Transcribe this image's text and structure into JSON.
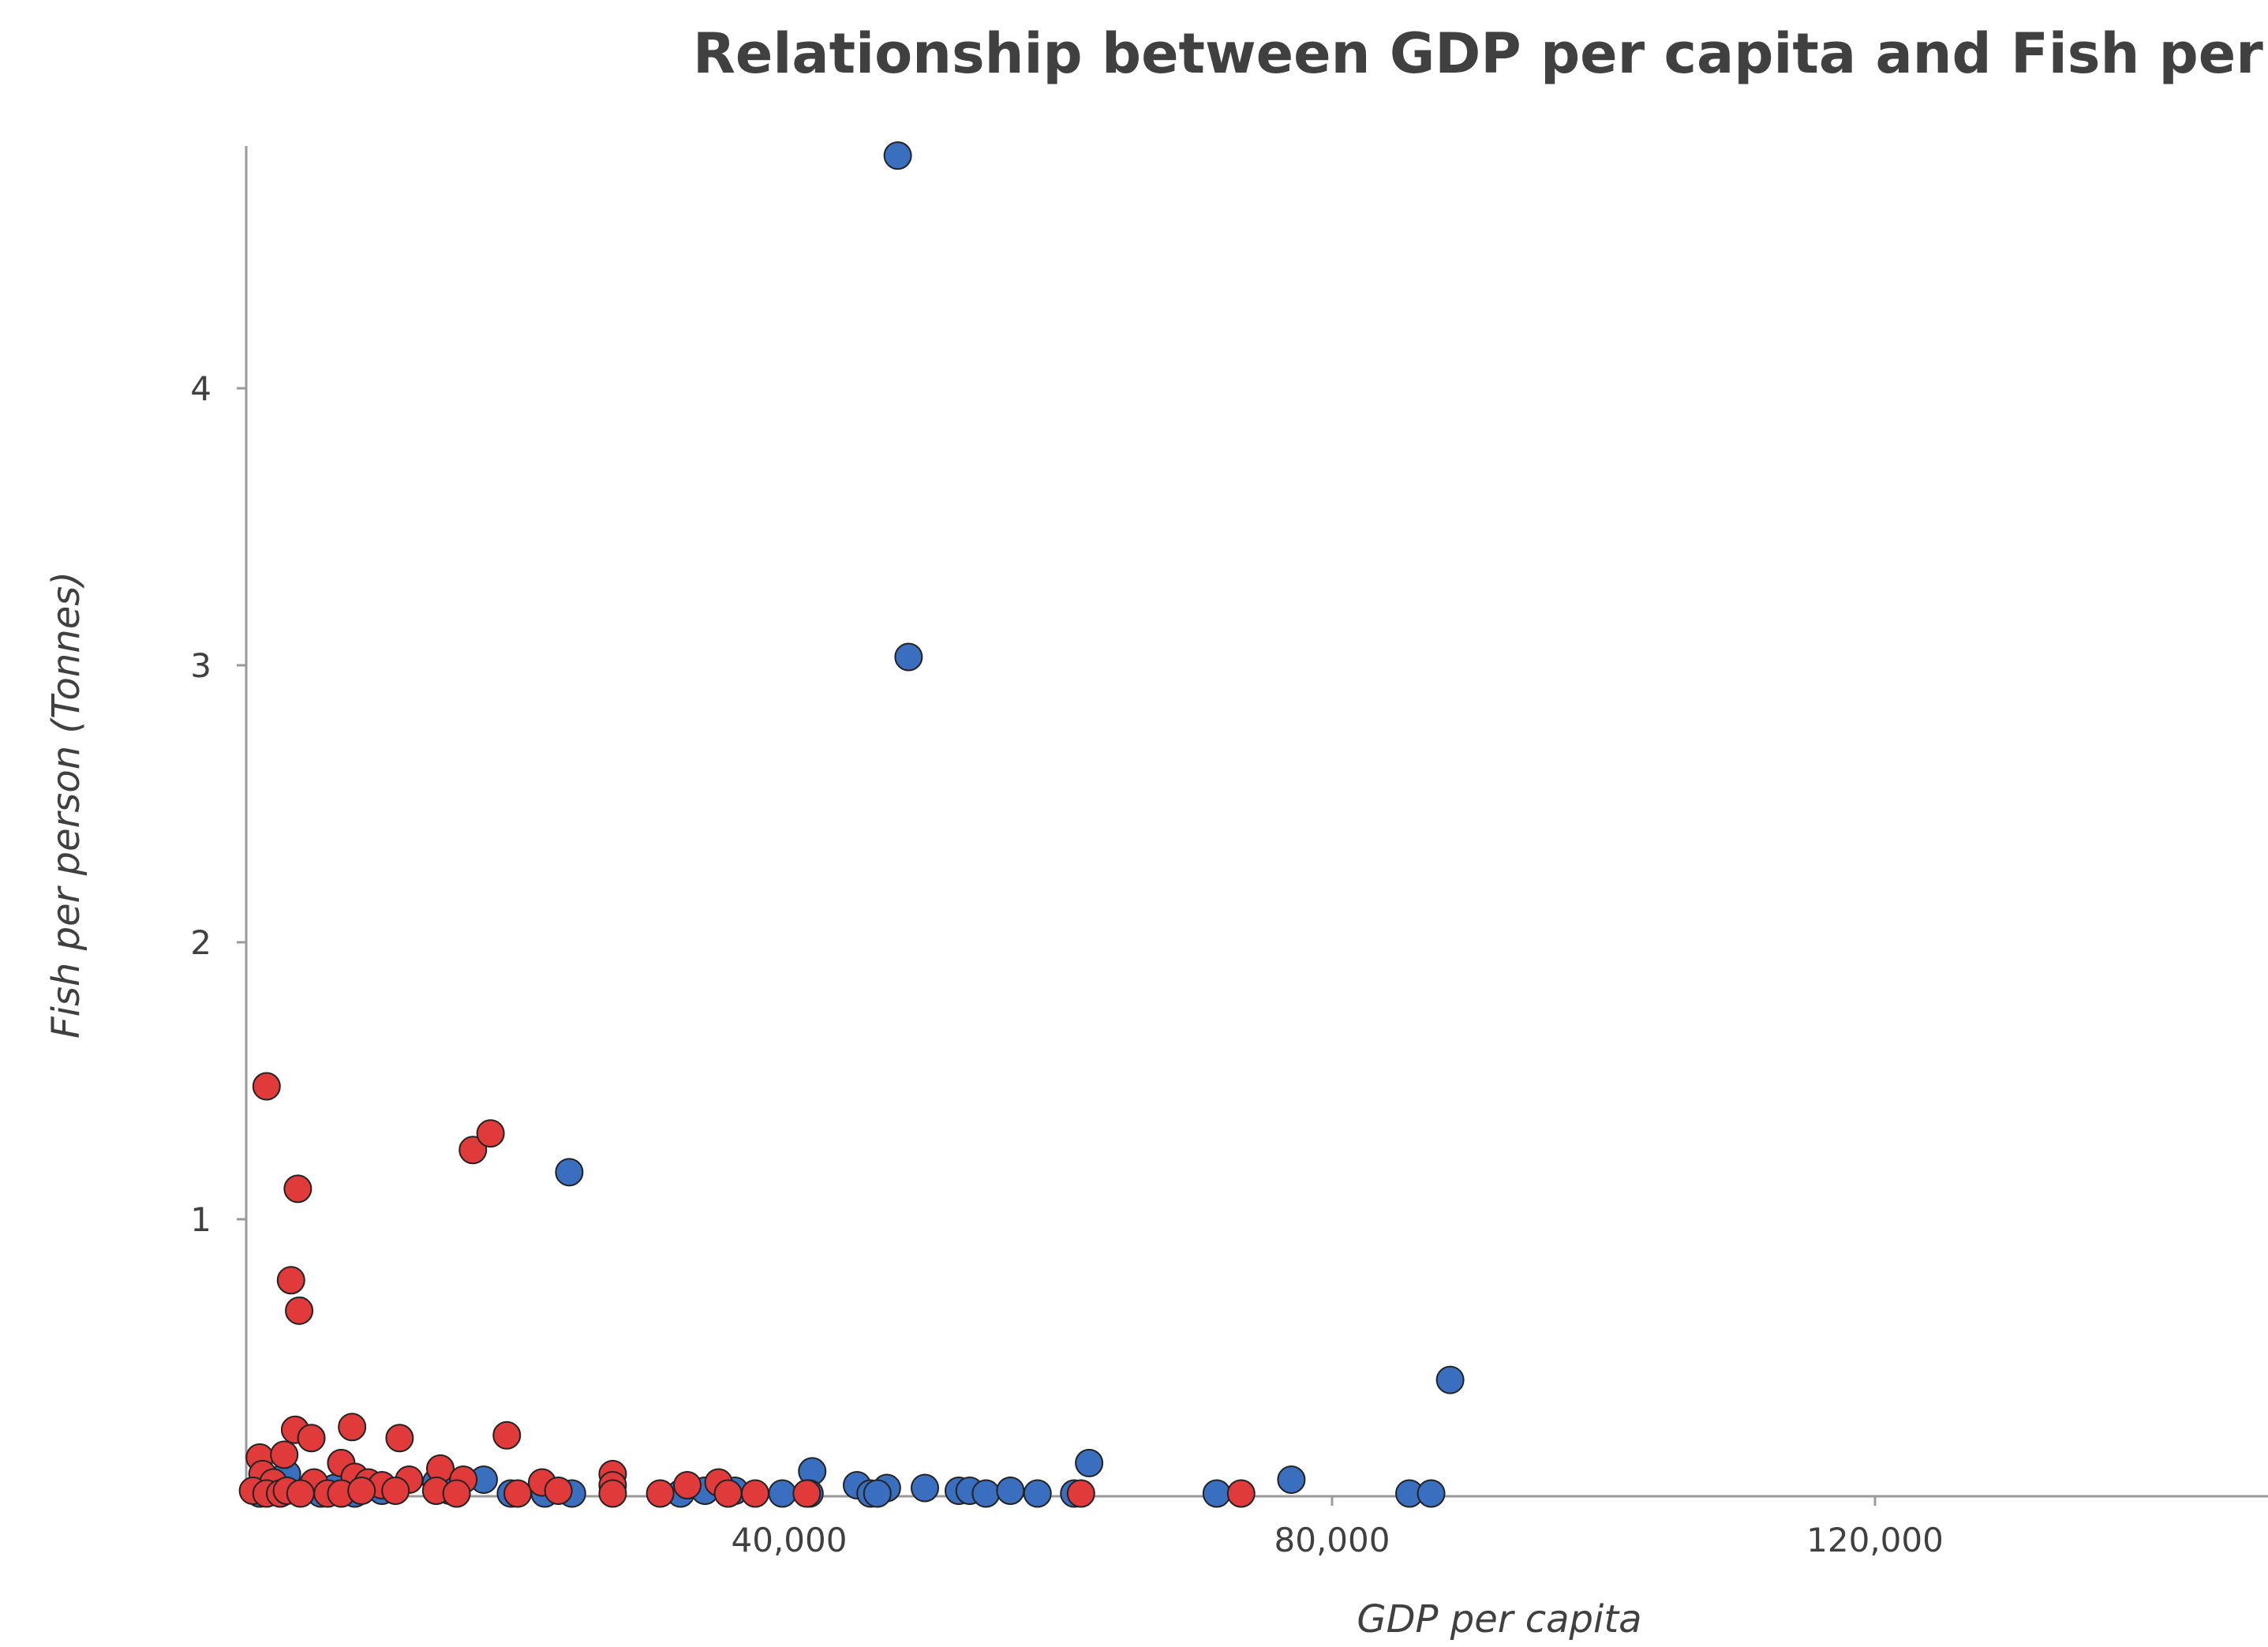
{
  "chart_data": {
    "type": "scatter",
    "title": "Relationship between GDP per capita and Fish per person",
    "xlabel": "GDP per capita",
    "ylabel": "Fish per person (Tonnes)",
    "xlim": [
      0,
      160000
    ],
    "ylim": [
      0,
      4.85
    ],
    "x_ticks": [
      {
        "value": 40000,
        "label": "40,000"
      },
      {
        "value": 80000,
        "label": "80,000"
      },
      {
        "value": 120000,
        "label": "120,000"
      }
    ],
    "y_ticks": [
      {
        "value": 1,
        "label": "1"
      },
      {
        "value": 2,
        "label": "2"
      },
      {
        "value": 3,
        "label": "3"
      },
      {
        "value": 4,
        "label": "4"
      }
    ],
    "grid": false,
    "legend": "none",
    "series": [
      {
        "color": "#3a6fbf",
        "points": [
          [
            48000,
            4.84
          ],
          [
            48800,
            3.03
          ],
          [
            23800,
            1.17
          ],
          [
            88700,
            0.42
          ],
          [
            62100,
            0.12
          ],
          [
            41700,
            0.09
          ],
          [
            77000,
            0.06
          ],
          [
            17500,
            0.06
          ],
          [
            3000,
            0.08
          ],
          [
            14000,
            0.05
          ],
          [
            45000,
            0.04
          ],
          [
            47200,
            0.03
          ],
          [
            50000,
            0.03
          ],
          [
            52500,
            0.02
          ],
          [
            53300,
            0.02
          ],
          [
            54500,
            0.01
          ],
          [
            56300,
            0.02
          ],
          [
            58300,
            0.01
          ],
          [
            61000,
            0.01
          ],
          [
            71500,
            0.01
          ],
          [
            85700,
            0.01
          ],
          [
            87300,
            0.01
          ],
          [
            46000,
            0.01
          ],
          [
            46500,
            0.01
          ],
          [
            41500,
            0.01
          ],
          [
            39500,
            0.01
          ],
          [
            32000,
            0.01
          ],
          [
            33800,
            0.02
          ],
          [
            36000,
            0.02
          ],
          [
            24000,
            0.01
          ],
          [
            22000,
            0.01
          ],
          [
            19500,
            0.01
          ],
          [
            15000,
            0.02
          ],
          [
            8000,
            0.01
          ],
          [
            5500,
            0.01
          ],
          [
            2000,
            0.02
          ],
          [
            1000,
            0.01
          ],
          [
            6500,
            0.03
          ],
          [
            10000,
            0.02
          ]
        ]
      },
      {
        "color": "#e03a3a",
        "points": [
          [
            1500,
            1.48
          ],
          [
            3800,
            1.11
          ],
          [
            16700,
            1.25
          ],
          [
            18000,
            1.31
          ],
          [
            3300,
            0.78
          ],
          [
            3900,
            0.67
          ],
          [
            7800,
            0.25
          ],
          [
            3600,
            0.24
          ],
          [
            19200,
            0.22
          ],
          [
            11300,
            0.21
          ],
          [
            4800,
            0.21
          ],
          [
            1000,
            0.14
          ],
          [
            2800,
            0.15
          ],
          [
            7000,
            0.12
          ],
          [
            14300,
            0.1
          ],
          [
            1200,
            0.08
          ],
          [
            27000,
            0.08
          ],
          [
            8000,
            0.07
          ],
          [
            12000,
            0.06
          ],
          [
            16000,
            0.06
          ],
          [
            21800,
            0.05
          ],
          [
            27000,
            0.04
          ],
          [
            34800,
            0.05
          ],
          [
            32500,
            0.04
          ],
          [
            9000,
            0.05
          ],
          [
            10000,
            0.04
          ],
          [
            5000,
            0.05
          ],
          [
            2000,
            0.05
          ],
          [
            500,
            0.02
          ],
          [
            1500,
            0.01
          ],
          [
            2500,
            0.01
          ],
          [
            3000,
            0.02
          ],
          [
            4000,
            0.01
          ],
          [
            6000,
            0.01
          ],
          [
            7000,
            0.01
          ],
          [
            8500,
            0.02
          ],
          [
            11000,
            0.02
          ],
          [
            14000,
            0.02
          ],
          [
            15500,
            0.01
          ],
          [
            20000,
            0.01
          ],
          [
            23000,
            0.02
          ],
          [
            27000,
            0.01
          ],
          [
            30500,
            0.01
          ],
          [
            35500,
            0.01
          ],
          [
            37500,
            0.01
          ],
          [
            41300,
            0.01
          ],
          [
            61500,
            0.01
          ],
          [
            73300,
            0.01
          ]
        ]
      }
    ]
  }
}
